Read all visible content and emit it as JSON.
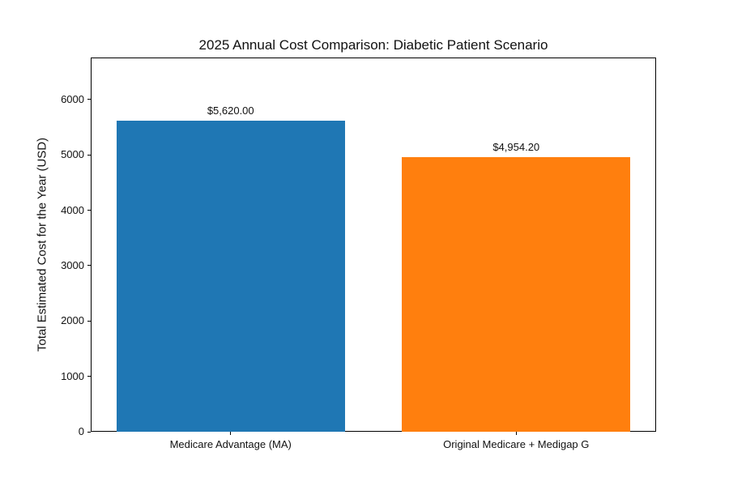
{
  "chart_data": {
    "type": "bar",
    "title": "2025 Annual Cost Comparison: Diabetic Patient Scenario",
    "xlabel": "",
    "ylabel": "Total Estimated Cost for the Year (USD)",
    "categories": [
      "Medicare Advantage (MA)",
      "Original Medicare + Medigap G"
    ],
    "values": [
      5620.0,
      4954.2
    ],
    "bar_labels": [
      "$5,620.00",
      "$4,954.20"
    ],
    "bar_colors": [
      "#1f77b4",
      "#ff7f0e"
    ],
    "ylim": [
      0,
      6760
    ],
    "yticks": [
      "0",
      "1000",
      "2000",
      "3000",
      "4000",
      "5000",
      "6000"
    ],
    "ytick_values": [
      0,
      1000,
      2000,
      3000,
      4000,
      5000,
      6000
    ],
    "grid": false,
    "legend_position": "none",
    "background_color": "#ffffff",
    "spine_color": "#000000"
  }
}
